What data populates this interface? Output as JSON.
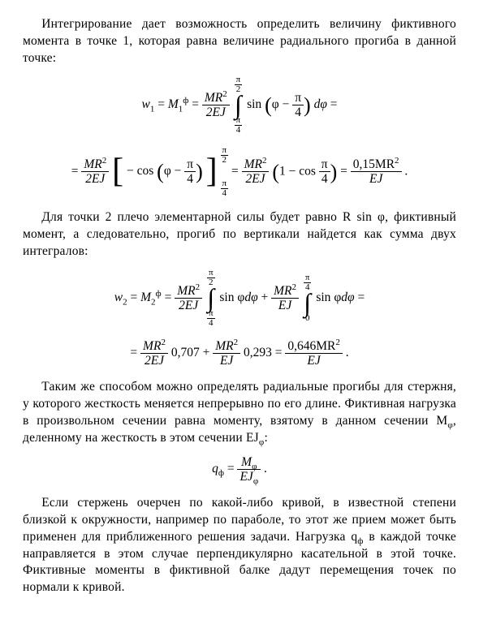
{
  "p1": "Интегрирование дает возможность определить величину фиктивного момента в точке 1, которая равна величине радиального прогиба в данной точке:",
  "p2": "Для точки 2 плечо элементарной силы будет равно R sin φ, фиктивный момент, а следовательно, прогиб по вертикали найдется как сумма двух интегралов:",
  "p3a": "Таким же способом можно определять радиальные прогибы для стержня, у которого жесткость меняется непрерывно по его длине. Фиктивная нагрузка в произвольном сечении равна моменту, взятому в данном сечении M",
  "p3b": ", деленному на жесткость в этом сечении EJ",
  "p3c": ":",
  "p4a": "Если стержень очерчен по какой-либо кривой, в известной степени близкой к окружности, например по параболе, то этот же прием может быть применен для приближенного решения задачи. Нагрузка q",
  "p4b": " в каждой точке направляется в этом случае перпендикулярно касательной в этой точке. Фиктивные моменты в фиктивной балке дадут перемещения точек по нормали к кривой.",
  "eq": {
    "w1": "w",
    "sub1": "1",
    "eqs": " = ",
    "M": "M",
    "phi_sup": "ф",
    "MR2": "MR",
    "sq": "2",
    "twoEJ": "2EJ",
    "EJ": "EJ",
    "sin": "sin",
    "cos": "cos",
    "phi": "φ",
    "minus": " − ",
    "plus": " + ",
    "pi": "π",
    "two": "2",
    "four": "4",
    "zero": "0",
    "dphi": "dφ",
    "eqend": " =",
    "oneminus": "1 − cos",
    "num015": "0,15MR",
    "num0646": "0,646MR",
    "v0707": " 0,707 ",
    "v0293": " 0,293 ",
    "w2": "w",
    "sub2": "2",
    "qf": "q",
    "subf": "ф",
    "Mphi": "M",
    "subphi": "φ",
    "EJphi": "EJ"
  }
}
